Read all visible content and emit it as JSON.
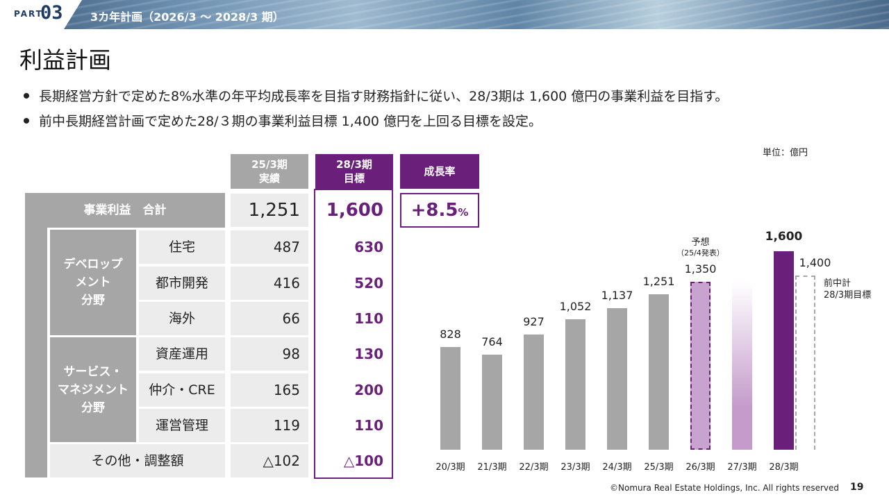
{
  "header": {
    "part_label": "PART",
    "part_number": "03",
    "title": "3カ年計画（2026/3 ～ 2028/3 期）"
  },
  "page_title": "利益計画",
  "bullets": [
    "長期経営方針で定めた8%水準の年平均成長率を目指す財務指針に従い、28/3期は 1,600 億円の事業利益を目指す。",
    "前中長期経営計画で定めた28/３期の事業利益目標 1,400 億円を上回る目標を設定。"
  ],
  "unit": "単位：億円",
  "table": {
    "col_actual": [
      "25/3期",
      "実績"
    ],
    "col_target": [
      "28/3期",
      "目標"
    ],
    "col_growth": "成長率",
    "total": {
      "label": "事業利益　合計",
      "actual": "1,251",
      "target": "1,600",
      "growth": "+8.5",
      "growth_unit": "%"
    },
    "segments": [
      {
        "name": [
          "デベロップ",
          "メント",
          "分野"
        ],
        "rows": [
          {
            "label": "住宅",
            "actual": "487",
            "target": "630"
          },
          {
            "label": "都市開発",
            "actual": "416",
            "target": "520"
          },
          {
            "label": "海外",
            "actual": "66",
            "target": "110"
          }
        ]
      },
      {
        "name": [
          "サービス・",
          "マネジメント",
          "分野"
        ],
        "rows": [
          {
            "label": "資産運用",
            "actual": "98",
            "target": "130"
          },
          {
            "label": "仲介・CRE",
            "actual": "165",
            "target": "200"
          },
          {
            "label": "運営管理",
            "actual": "119",
            "target": "110"
          }
        ]
      }
    ],
    "other": {
      "label": "その他・調整額",
      "actual": "△102",
      "target": "△100"
    }
  },
  "chart_data": {
    "type": "bar",
    "categories": [
      "20/3期",
      "21/3期",
      "22/3期",
      "23/3期",
      "24/3期",
      "25/3期",
      "26/3期",
      "27/3期",
      "28/3期"
    ],
    "values": [
      828,
      764,
      927,
      1052,
      1137,
      1251,
      1350,
      null,
      1600
    ],
    "value_labels": [
      "828",
      "764",
      "927",
      "1,052",
      "1,137",
      "1,251",
      "1,350",
      "",
      "1,600"
    ],
    "forecast_note": [
      "予想",
      "（25/4発表）"
    ],
    "previous_plan": {
      "value": 1400,
      "value_label": "1,400",
      "label": [
        "前中計",
        "28/3期目標"
      ]
    },
    "colors": {
      "actual": "#a6a6a6",
      "forecast": "#c9a3cf",
      "transition": "#c49bcb",
      "target": "#6a1f7a"
    },
    "ylim": [
      0,
      1700
    ]
  },
  "footer": {
    "copyright": "©Nomura Real Estate Holdings, Inc. All rights reserved",
    "page": "19"
  }
}
